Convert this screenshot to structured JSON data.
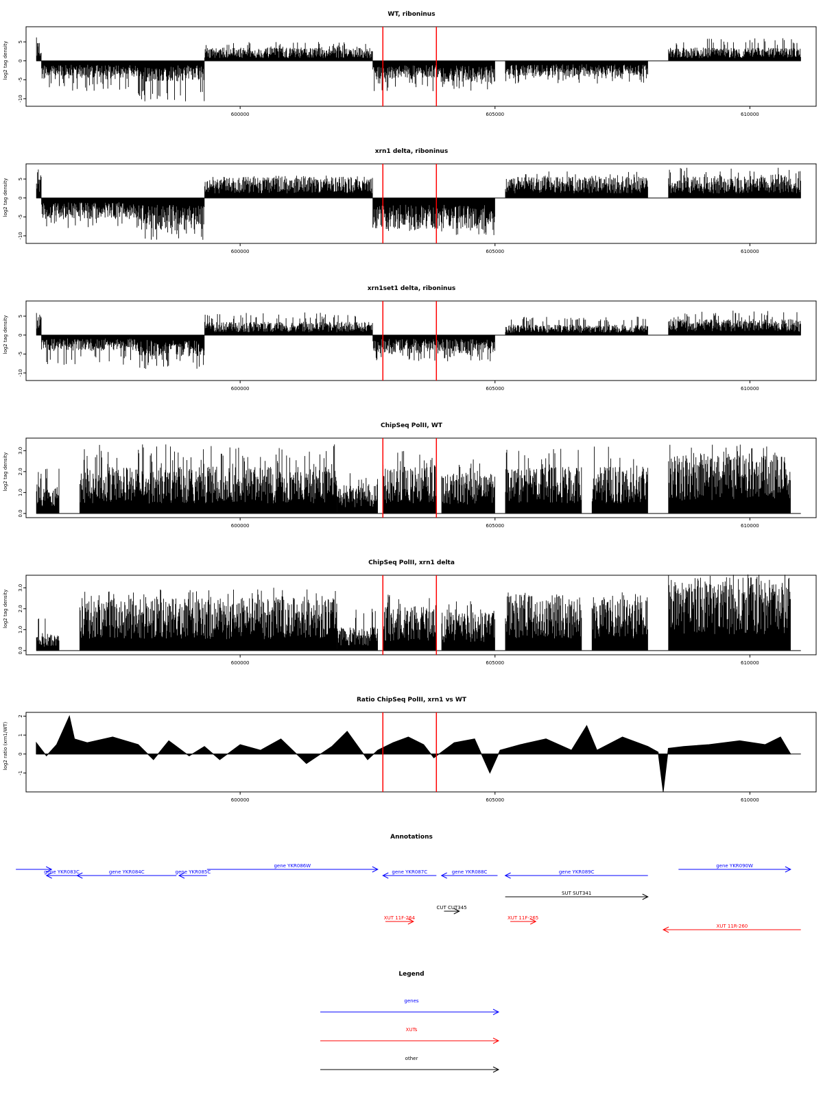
{
  "colors": {
    "genes": "#0000ff",
    "xuts": "#ff0000",
    "other": "#000000",
    "markers": "#ff0000",
    "bars": "#000000"
  },
  "markers_x": [
    602800,
    603850
  ],
  "chart_data": [
    {
      "type": "bar",
      "title": "WT, riboninus",
      "ylabel": "log2 tag density",
      "xlim": [
        595800,
        611300
      ],
      "ylim": [
        -12,
        9
      ],
      "yticks": [
        -10,
        -5,
        0,
        5
      ],
      "ytick_labels": [
        "-10",
        "-5",
        "0",
        "5"
      ],
      "xticks": [
        600000,
        605000,
        610000
      ],
      "xtick_labels": [
        "600000",
        "605000",
        "610000"
      ],
      "series": [
        {
          "segments": [
            {
              "from": 596000,
              "to": 596100,
              "value": 4,
              "peak": 6.5
            },
            {
              "from": 596100,
              "to": 598000,
              "value": -3.5,
              "peak": -8
            },
            {
              "from": 598000,
              "to": 599300,
              "value": -4,
              "peak": -11
            },
            {
              "from": 599300,
              "to": 602600,
              "value": 2.5,
              "peak": 5
            },
            {
              "from": 602600,
              "to": 603850,
              "value": -3.5,
              "peak": -8
            },
            {
              "from": 603850,
              "to": 605000,
              "value": -4,
              "peak": -8
            },
            {
              "from": 605200,
              "to": 608000,
              "value": -3,
              "peak": -6
            },
            {
              "from": 608400,
              "to": 611000,
              "value": 2.5,
              "peak": 6
            }
          ]
        }
      ]
    },
    {
      "type": "bar",
      "title": "xrn1 delta, riboninus",
      "ylabel": "log2 tag density",
      "xlim": [
        595800,
        611300
      ],
      "ylim": [
        -12,
        9
      ],
      "yticks": [
        -10,
        -5,
        0,
        5
      ],
      "ytick_labels": [
        "-10",
        "-5",
        "0",
        "5"
      ],
      "xticks": [
        600000,
        605000,
        610000
      ],
      "xtick_labels": [
        "600000",
        "605000",
        "610000"
      ],
      "series": [
        {
          "segments": [
            {
              "from": 596000,
              "to": 596100,
              "value": 5,
              "peak": 8
            },
            {
              "from": 596100,
              "to": 598000,
              "value": -4,
              "peak": -8
            },
            {
              "from": 598000,
              "to": 599300,
              "value": -6,
              "peak": -11.5
            },
            {
              "from": 599300,
              "to": 602600,
              "value": 4,
              "peak": 6
            },
            {
              "from": 602600,
              "to": 603850,
              "value": -6,
              "peak": -9
            },
            {
              "from": 603850,
              "to": 605000,
              "value": -6,
              "peak": -10
            },
            {
              "from": 605200,
              "to": 608000,
              "value": 4,
              "peak": 7
            },
            {
              "from": 608400,
              "to": 611000,
              "value": 4,
              "peak": 8
            }
          ]
        }
      ]
    },
    {
      "type": "bar",
      "title": "xrn1set1 delta, riboninus",
      "ylabel": "log2 tag density",
      "xlim": [
        595800,
        611300
      ],
      "ylim": [
        -12,
        9
      ],
      "yticks": [
        -10,
        -5,
        0,
        5
      ],
      "ytick_labels": [
        "-10",
        "-5",
        "0",
        "5"
      ],
      "xticks": [
        600000,
        605000,
        610000
      ],
      "xtick_labels": [
        "600000",
        "605000",
        "610000"
      ],
      "series": [
        {
          "segments": [
            {
              "from": 596000,
              "to": 596100,
              "value": 4,
              "peak": 6.5
            },
            {
              "from": 596100,
              "to": 598000,
              "value": -3,
              "peak": -8
            },
            {
              "from": 598000,
              "to": 599300,
              "value": -4,
              "peak": -9
            },
            {
              "from": 599300,
              "to": 602600,
              "value": 2.5,
              "peak": 6
            },
            {
              "from": 602600,
              "to": 603850,
              "value": -3.5,
              "peak": -7
            },
            {
              "from": 603850,
              "to": 605000,
              "value": -3.5,
              "peak": -7
            },
            {
              "from": 605200,
              "to": 608000,
              "value": 2,
              "peak": 5
            },
            {
              "from": 608400,
              "to": 611000,
              "value": 3,
              "peak": 6.5
            }
          ]
        }
      ]
    },
    {
      "type": "bar",
      "title": "ChipSeq PolII, WT",
      "ylabel": "log2 tag density",
      "xlim": [
        595800,
        611300
      ],
      "ylim": [
        -0.2,
        3.6
      ],
      "yticks": [
        0,
        1,
        2,
        3
      ],
      "ytick_labels": [
        "0.0",
        "1.0",
        "2.0",
        "3.0"
      ],
      "xticks": [
        600000,
        605000,
        610000
      ],
      "xtick_labels": [
        "600000",
        "605000",
        "610000"
      ],
      "series": [
        {
          "segments": [
            {
              "from": 596000,
              "to": 596450,
              "value": 1.0,
              "peak": 2.3
            },
            {
              "from": 596850,
              "to": 599400,
              "value": 1.6,
              "peak": 3.3
            },
            {
              "from": 599400,
              "to": 601900,
              "value": 1.6,
              "peak": 3.3
            },
            {
              "from": 601900,
              "to": 602700,
              "value": 1.0,
              "peak": 2.0
            },
            {
              "from": 602800,
              "to": 603850,
              "value": 1.6,
              "peak": 3.1
            },
            {
              "from": 603950,
              "to": 605000,
              "value": 1.4,
              "peak": 2.6
            },
            {
              "from": 605200,
              "to": 606700,
              "value": 1.6,
              "peak": 3.1
            },
            {
              "from": 606900,
              "to": 608000,
              "value": 1.6,
              "peak": 3.2
            },
            {
              "from": 608400,
              "to": 610800,
              "value": 2.0,
              "peak": 3.3
            }
          ]
        }
      ]
    },
    {
      "type": "bar",
      "title": "ChipSeq PolII, xrn1 delta",
      "ylabel": "log2 tag density",
      "xlim": [
        595800,
        611300
      ],
      "ylim": [
        -0.2,
        3.6
      ],
      "yticks": [
        0,
        1,
        2,
        3
      ],
      "ytick_labels": [
        "0.0",
        "1.0",
        "2.0",
        "3.0"
      ],
      "xticks": [
        600000,
        605000,
        610000
      ],
      "xtick_labels": [
        "600000",
        "605000",
        "610000"
      ],
      "series": [
        {
          "segments": [
            {
              "from": 596000,
              "to": 596450,
              "value": 0.6,
              "peak": 1.7
            },
            {
              "from": 596850,
              "to": 599400,
              "value": 1.8,
              "peak": 3.0
            },
            {
              "from": 599400,
              "to": 601900,
              "value": 1.8,
              "peak": 3.0
            },
            {
              "from": 601900,
              "to": 602700,
              "value": 0.8,
              "peak": 2.0
            },
            {
              "from": 602800,
              "to": 603850,
              "value": 1.5,
              "peak": 2.7
            },
            {
              "from": 603950,
              "to": 605000,
              "value": 1.3,
              "peak": 2.4
            },
            {
              "from": 605200,
              "to": 606700,
              "value": 1.9,
              "peak": 2.8
            },
            {
              "from": 606900,
              "to": 608000,
              "value": 1.9,
              "peak": 2.8
            },
            {
              "from": 608400,
              "to": 610800,
              "value": 2.6,
              "peak": 3.3
            }
          ]
        }
      ]
    },
    {
      "type": "area",
      "title": "Ratio ChipSeq PolII, xrn1 vs WT",
      "ylabel": "log2 ratio (xrn1/WT)",
      "xlim": [
        595800,
        611300
      ],
      "ylim": [
        -2,
        2.2
      ],
      "yticks": [
        -1,
        0,
        1,
        2
      ],
      "ytick_labels": [
        "-1",
        "0",
        "1",
        "2"
      ],
      "xticks": [
        600000,
        605000,
        610000
      ],
      "xtick_labels": [
        "600000",
        "605000",
        "610000"
      ],
      "series": [
        {
          "x": [
            596000,
            596200,
            596400,
            596650,
            596750,
            597000,
            597500,
            598000,
            598300,
            598600,
            599000,
            599300,
            599600,
            600000,
            600400,
            600800,
            601300,
            601800,
            602100,
            602500,
            602700,
            603000,
            603300,
            603600,
            603800,
            604200,
            604600,
            604900,
            605100,
            605500,
            606000,
            606500,
            606800,
            607000,
            607500,
            608000,
            608200,
            608300,
            608400,
            608700,
            609200,
            609800,
            610300,
            610600,
            610800
          ],
          "y": [
            0.6,
            -0.1,
            0.5,
            2.0,
            0.8,
            0.6,
            0.9,
            0.5,
            -0.3,
            0.7,
            -0.1,
            0.4,
            -0.3,
            0.5,
            0.2,
            0.8,
            -0.5,
            0.4,
            1.2,
            -0.3,
            0.2,
            0.6,
            0.9,
            0.5,
            -0.2,
            0.6,
            0.8,
            -1.0,
            0.2,
            0.5,
            0.8,
            0.2,
            1.5,
            0.2,
            0.9,
            0.4,
            0.1,
            -2.0,
            0.3,
            0.4,
            0.5,
            0.7,
            0.5,
            0.9,
            0.0
          ]
        }
      ]
    }
  ],
  "annotations": {
    "title": "Annotations",
    "features": [
      {
        "label": "",
        "start": 595600,
        "end": 596300,
        "strand": "+",
        "kind": "genes",
        "row": 0
      },
      {
        "label": "gene YKR083C",
        "start": 596200,
        "end": 596800,
        "strand": "-",
        "kind": "genes",
        "row": 1
      },
      {
        "label": "gene YKR084C",
        "start": 596800,
        "end": 598750,
        "strand": "-",
        "kind": "genes",
        "row": 1
      },
      {
        "label": "gene YKR085C",
        "start": 598800,
        "end": 599350,
        "strand": "-",
        "kind": "genes",
        "row": 1
      },
      {
        "label": "gene YKR086W",
        "start": 599350,
        "end": 602700,
        "strand": "+",
        "kind": "genes",
        "row": 0
      },
      {
        "label": "gene YKR087C",
        "start": 602800,
        "end": 603850,
        "strand": "-",
        "kind": "genes",
        "row": 1
      },
      {
        "label": "gene YKR088C",
        "start": 603950,
        "end": 605050,
        "strand": "-",
        "kind": "genes",
        "row": 1
      },
      {
        "label": "gene YKR089C",
        "start": 605200,
        "end": 608000,
        "strand": "-",
        "kind": "genes",
        "row": 1
      },
      {
        "label": "gene YKR090W",
        "start": 608600,
        "end": 610800,
        "strand": "+",
        "kind": "genes",
        "row": 0
      },
      {
        "label": "SUT SUT341",
        "start": 605200,
        "end": 608000,
        "strand": "+",
        "kind": "other",
        "row": 2
      },
      {
        "label": "CUT CUT345",
        "start": 604000,
        "end": 604300,
        "strand": "+",
        "kind": "other",
        "row": 3
      },
      {
        "label": "XUT 11F-264",
        "start": 602850,
        "end": 603400,
        "strand": "+",
        "kind": "xuts",
        "row": 4
      },
      {
        "label": "XUT 11F-265",
        "start": 605300,
        "end": 605800,
        "strand": "+",
        "kind": "xuts",
        "row": 4
      },
      {
        "label": "XUT 11R-260",
        "start": 608300,
        "end": 611000,
        "strand": "-",
        "kind": "xuts",
        "row": 5
      }
    ]
  },
  "legend": {
    "title": "Legend",
    "items": [
      {
        "label": "genes",
        "kind": "genes"
      },
      {
        "label": "XUTs",
        "kind": "xuts"
      },
      {
        "label": "other",
        "kind": "other"
      }
    ]
  }
}
